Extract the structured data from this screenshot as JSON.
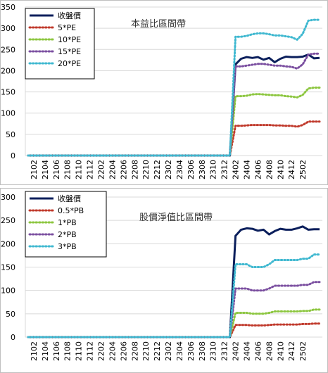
{
  "chart_data": [
    {
      "type": "line",
      "title": "本益比區間帶",
      "x_ticks": [
        "2102",
        "2104",
        "2106",
        "2108",
        "2110",
        "2112",
        "2202",
        "2204",
        "2206",
        "2208",
        "2210",
        "2212",
        "2302",
        "2304",
        "2306",
        "2308",
        "2310",
        "2312",
        "2402",
        "2404",
        "2406",
        "2408",
        "2410",
        "2412",
        "2502"
      ],
      "ylim": [
        0,
        350
      ],
      "y_ticks": [
        "0",
        "50",
        "100",
        "150",
        "200",
        "250",
        "300",
        "350"
      ],
      "legend_position": "top-left",
      "series": [
        {
          "name": "收盤價",
          "color": "#0b1f5c",
          "style": "solid",
          "values": [
            0,
            0,
            0,
            0,
            0,
            0,
            0,
            0,
            0,
            0,
            0,
            0,
            0,
            0,
            0,
            0,
            0,
            0,
            0,
            0,
            0,
            0,
            0,
            0,
            0,
            0,
            0,
            0,
            0,
            0,
            0,
            0,
            0,
            0,
            0,
            0,
            0,
            215,
            228,
            232,
            230,
            232,
            226,
            230,
            220,
            228,
            233,
            232,
            232,
            233,
            238,
            229,
            230
          ]
        },
        {
          "name": "5*PE",
          "color": "#c0392b",
          "style": "dotted",
          "values": [
            0,
            0,
            0,
            0,
            0,
            0,
            0,
            0,
            0,
            0,
            0,
            0,
            0,
            0,
            0,
            0,
            0,
            0,
            0,
            0,
            0,
            0,
            0,
            0,
            0,
            0,
            0,
            0,
            0,
            0,
            0,
            0,
            0,
            0,
            0,
            0,
            0,
            70,
            70,
            71,
            72,
            72,
            72,
            72,
            71,
            71,
            70,
            70,
            68,
            72,
            80,
            80,
            80
          ]
        },
        {
          "name": "10*PE",
          "color": "#8cc63f",
          "style": "dotted",
          "values": [
            0,
            0,
            0,
            0,
            0,
            0,
            0,
            0,
            0,
            0,
            0,
            0,
            0,
            0,
            0,
            0,
            0,
            0,
            0,
            0,
            0,
            0,
            0,
            0,
            0,
            0,
            0,
            0,
            0,
            0,
            0,
            0,
            0,
            0,
            0,
            0,
            0,
            140,
            140,
            141,
            144,
            145,
            144,
            143,
            142,
            142,
            140,
            139,
            137,
            143,
            158,
            160,
            160
          ]
        },
        {
          "name": "15*PE",
          "color": "#7b4fa0",
          "style": "dotted",
          "values": [
            0,
            0,
            0,
            0,
            0,
            0,
            0,
            0,
            0,
            0,
            0,
            0,
            0,
            0,
            0,
            0,
            0,
            0,
            0,
            0,
            0,
            0,
            0,
            0,
            0,
            0,
            0,
            0,
            0,
            0,
            0,
            0,
            0,
            0,
            0,
            0,
            0,
            210,
            210,
            212,
            214,
            216,
            216,
            214,
            212,
            212,
            210,
            209,
            205,
            215,
            238,
            240,
            240
          ]
        },
        {
          "name": "20*PE",
          "color": "#3fb8d0",
          "style": "dotted",
          "values": [
            0,
            0,
            0,
            0,
            0,
            0,
            0,
            0,
            0,
            0,
            0,
            0,
            0,
            0,
            0,
            0,
            0,
            0,
            0,
            0,
            0,
            0,
            0,
            0,
            0,
            0,
            0,
            0,
            0,
            0,
            0,
            0,
            0,
            0,
            0,
            0,
            0,
            280,
            280,
            282,
            286,
            288,
            288,
            286,
            283,
            283,
            281,
            279,
            273,
            287,
            318,
            320,
            320
          ]
        }
      ]
    },
    {
      "type": "line",
      "title": "股價淨值比區間帶",
      "x_ticks": [
        "2102",
        "2104",
        "2106",
        "2108",
        "2110",
        "2112",
        "2202",
        "2204",
        "2206",
        "2208",
        "2210",
        "2212",
        "2302",
        "2304",
        "2306",
        "2308",
        "2310",
        "2312",
        "2402",
        "2404",
        "2406",
        "2408",
        "2410",
        "2412",
        "2502"
      ],
      "ylim": [
        0,
        300
      ],
      "y_ticks": [
        "0",
        "50",
        "100",
        "150",
        "200",
        "250",
        "300"
      ],
      "legend_position": "top-left",
      "series": [
        {
          "name": "收盤價",
          "color": "#0b1f5c",
          "style": "solid",
          "values": [
            0,
            0,
            0,
            0,
            0,
            0,
            0,
            0,
            0,
            0,
            0,
            0,
            0,
            0,
            0,
            0,
            0,
            0,
            0,
            0,
            0,
            0,
            0,
            0,
            0,
            0,
            0,
            0,
            0,
            0,
            0,
            0,
            0,
            0,
            0,
            0,
            0,
            217,
            230,
            233,
            232,
            228,
            230,
            220,
            227,
            232,
            230,
            230,
            233,
            237,
            230,
            231,
            231
          ]
        },
        {
          "name": "0.5*PB",
          "color": "#c0392b",
          "style": "dotted",
          "values": [
            0,
            0,
            0,
            0,
            0,
            0,
            0,
            0,
            0,
            0,
            0,
            0,
            0,
            0,
            0,
            0,
            0,
            0,
            0,
            0,
            0,
            0,
            0,
            0,
            0,
            0,
            0,
            0,
            0,
            0,
            0,
            0,
            0,
            0,
            0,
            0,
            0,
            26,
            26,
            26,
            25,
            25,
            25,
            26,
            27,
            27,
            27,
            27,
            27,
            28,
            28,
            29,
            29
          ]
        },
        {
          "name": "1*PB",
          "color": "#8cc63f",
          "style": "dotted",
          "values": [
            0,
            0,
            0,
            0,
            0,
            0,
            0,
            0,
            0,
            0,
            0,
            0,
            0,
            0,
            0,
            0,
            0,
            0,
            0,
            0,
            0,
            0,
            0,
            0,
            0,
            0,
            0,
            0,
            0,
            0,
            0,
            0,
            0,
            0,
            0,
            0,
            0,
            52,
            52,
            52,
            50,
            50,
            50,
            52,
            55,
            55,
            55,
            55,
            55,
            56,
            56,
            59,
            59
          ]
        },
        {
          "name": "2*PB",
          "color": "#7b4fa0",
          "style": "dotted",
          "values": [
            0,
            0,
            0,
            0,
            0,
            0,
            0,
            0,
            0,
            0,
            0,
            0,
            0,
            0,
            0,
            0,
            0,
            0,
            0,
            0,
            0,
            0,
            0,
            0,
            0,
            0,
            0,
            0,
            0,
            0,
            0,
            0,
            0,
            0,
            0,
            0,
            0,
            104,
            104,
            104,
            100,
            100,
            100,
            104,
            110,
            110,
            110,
            110,
            110,
            112,
            112,
            118,
            118
          ]
        },
        {
          "name": "3*PB",
          "color": "#3fb8d0",
          "style": "dotted",
          "values": [
            0,
            0,
            0,
            0,
            0,
            0,
            0,
            0,
            0,
            0,
            0,
            0,
            0,
            0,
            0,
            0,
            0,
            0,
            0,
            0,
            0,
            0,
            0,
            0,
            0,
            0,
            0,
            0,
            0,
            0,
            0,
            0,
            0,
            0,
            0,
            0,
            0,
            156,
            156,
            156,
            150,
            150,
            150,
            156,
            165,
            165,
            165,
            165,
            165,
            168,
            168,
            177,
            177
          ]
        }
      ]
    }
  ]
}
